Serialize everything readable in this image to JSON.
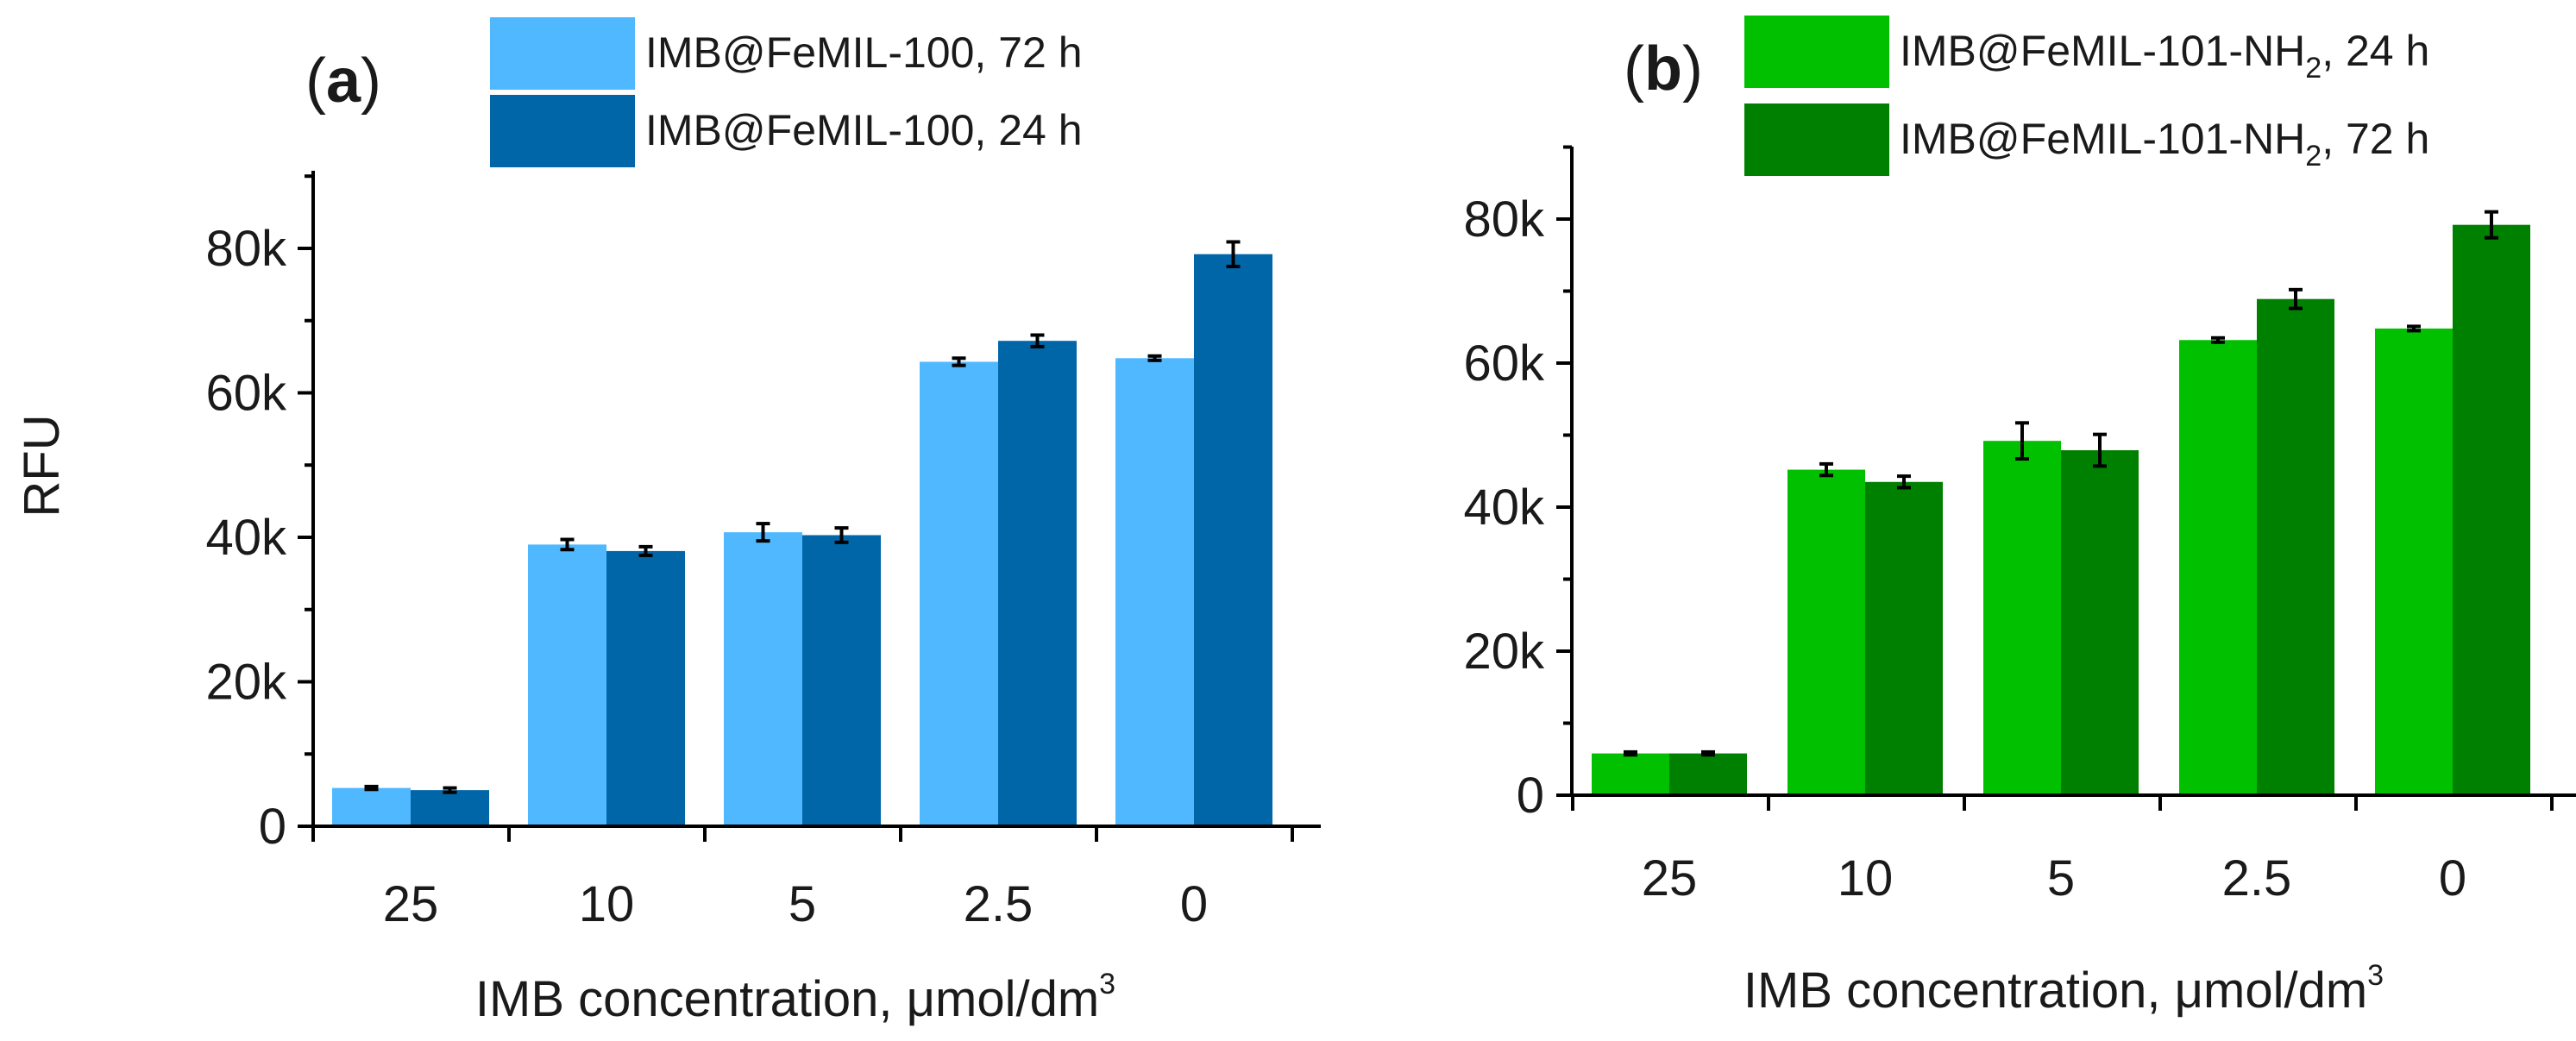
{
  "chart_data": [
    {
      "panel": "(a)",
      "type": "bar",
      "categories": [
        "25",
        "10",
        "5",
        "2.5",
        "0"
      ],
      "xlabel": "IMB concentration, μmol/dm³",
      "xlabel_text": "IMB concentration, ",
      "xlabel_mu": "μ",
      "xlabel_unit": "mol/dm",
      "xlabel_sup": "3",
      "ylabel": "RFU",
      "ylim": [
        0,
        90000
      ],
      "yticks": [
        0,
        20000,
        40000,
        60000,
        80000
      ],
      "ytick_labels": [
        "0",
        "20k",
        "40k",
        "60k",
        "80k"
      ],
      "series": [
        {
          "name": "IMB@FeMIL-100, 72 h",
          "color": "#4fb8ff",
          "values": [
            5300,
            39000,
            40700,
            64300,
            64800
          ],
          "errors": [
            200,
            700,
            1200,
            500,
            300
          ]
        },
        {
          "name": "IMB@FeMIL-100, 24 h",
          "color": "#0066a8",
          "values": [
            5000,
            38100,
            40300,
            67200,
            79200
          ],
          "errors": [
            300,
            600,
            1000,
            800,
            1700
          ]
        }
      ]
    },
    {
      "panel": "(b)",
      "type": "bar",
      "categories": [
        "25",
        "10",
        "5",
        "2.5",
        "0"
      ],
      "xlabel": "IMB concentration, μmol/dm³",
      "xlabel_text": "IMB concentration, ",
      "xlabel_mu": "μ",
      "xlabel_unit": "mol/dm",
      "xlabel_sup": "3",
      "ylabel": "",
      "ylim": [
        0,
        90000
      ],
      "yticks": [
        0,
        20000,
        40000,
        60000,
        80000
      ],
      "ytick_labels": [
        "0",
        "20k",
        "40k",
        "60k",
        "80k"
      ],
      "series": [
        {
          "name": "IMB@FeMIL-101-NH₂, 24 h",
          "name_main": "IMB@FeMIL-101-NH",
          "name_sub": "2",
          "name_tail": ", 24 h",
          "color": "#00c000",
          "values": [
            5800,
            45200,
            49200,
            63200,
            64800
          ],
          "errors": [
            200,
            800,
            2500,
            300,
            300
          ]
        },
        {
          "name": "IMB@FeMIL-101-NH₂, 72 h",
          "name_main": "IMB@FeMIL-101-NH",
          "name_sub": "2",
          "name_tail": ", 72 h",
          "color": "#008000",
          "values": [
            5800,
            43500,
            47900,
            68900,
            79200
          ],
          "errors": [
            200,
            800,
            2200,
            1300,
            1800
          ]
        }
      ]
    }
  ]
}
